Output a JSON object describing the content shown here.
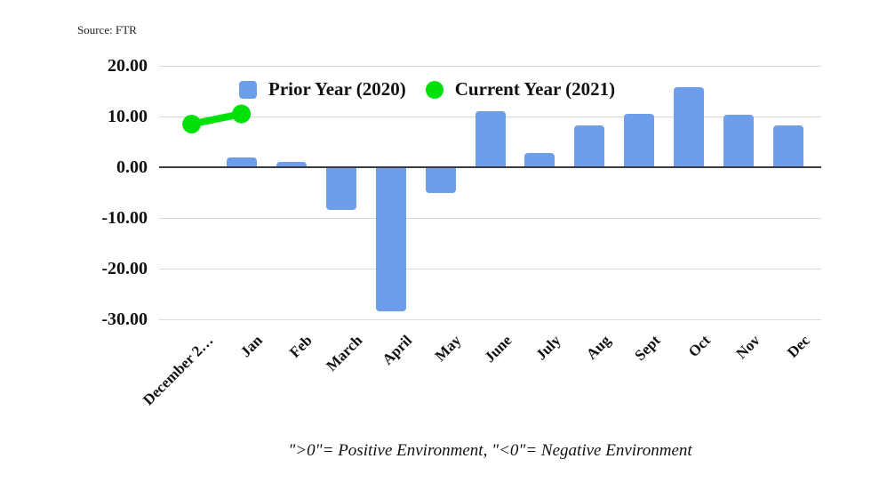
{
  "page": {
    "source_note": "Source: FTR",
    "caption": "\">0\"= Positive Environment, \"<0\"= Negative Environment"
  },
  "colors": {
    "bar_blue": "#6d9eeb",
    "line_green": "#00e10a",
    "gridline": "#d9d9d9",
    "zero_line": "#3d3d3d",
    "text": "#111111"
  },
  "chart_data": {
    "type": "bar",
    "title": "",
    "xlabel": "",
    "ylabel": "",
    "categories": [
      "December 2…",
      "Jan",
      "Feb",
      "March",
      "April",
      "May",
      "June",
      "July",
      "Aug",
      "Sept",
      "Oct",
      "Nov",
      "Dec"
    ],
    "series": [
      {
        "name": "Prior Year (2020)",
        "type": "bar",
        "color": "#6d9eeb",
        "values": [
          null,
          2.0,
          1.0,
          -8.5,
          -28.5,
          -5.0,
          11.0,
          2.8,
          8.3,
          10.5,
          15.8,
          10.3,
          8.3
        ]
      },
      {
        "name": "Current Year (2021)",
        "type": "line",
        "color": "#00e10a",
        "values": [
          8.5,
          10.5,
          null,
          null,
          null,
          null,
          null,
          null,
          null,
          null,
          null,
          null,
          null
        ]
      }
    ],
    "ylim": [
      -30,
      20
    ],
    "yticks": {
      "labels": [
        "20.00",
        "10.00",
        "0.00",
        "-10.00",
        "-20.00",
        "-30.00"
      ],
      "values": [
        20,
        10,
        0,
        -10,
        -20,
        -30
      ]
    },
    "grid": true,
    "legend_position": "top-inside"
  }
}
